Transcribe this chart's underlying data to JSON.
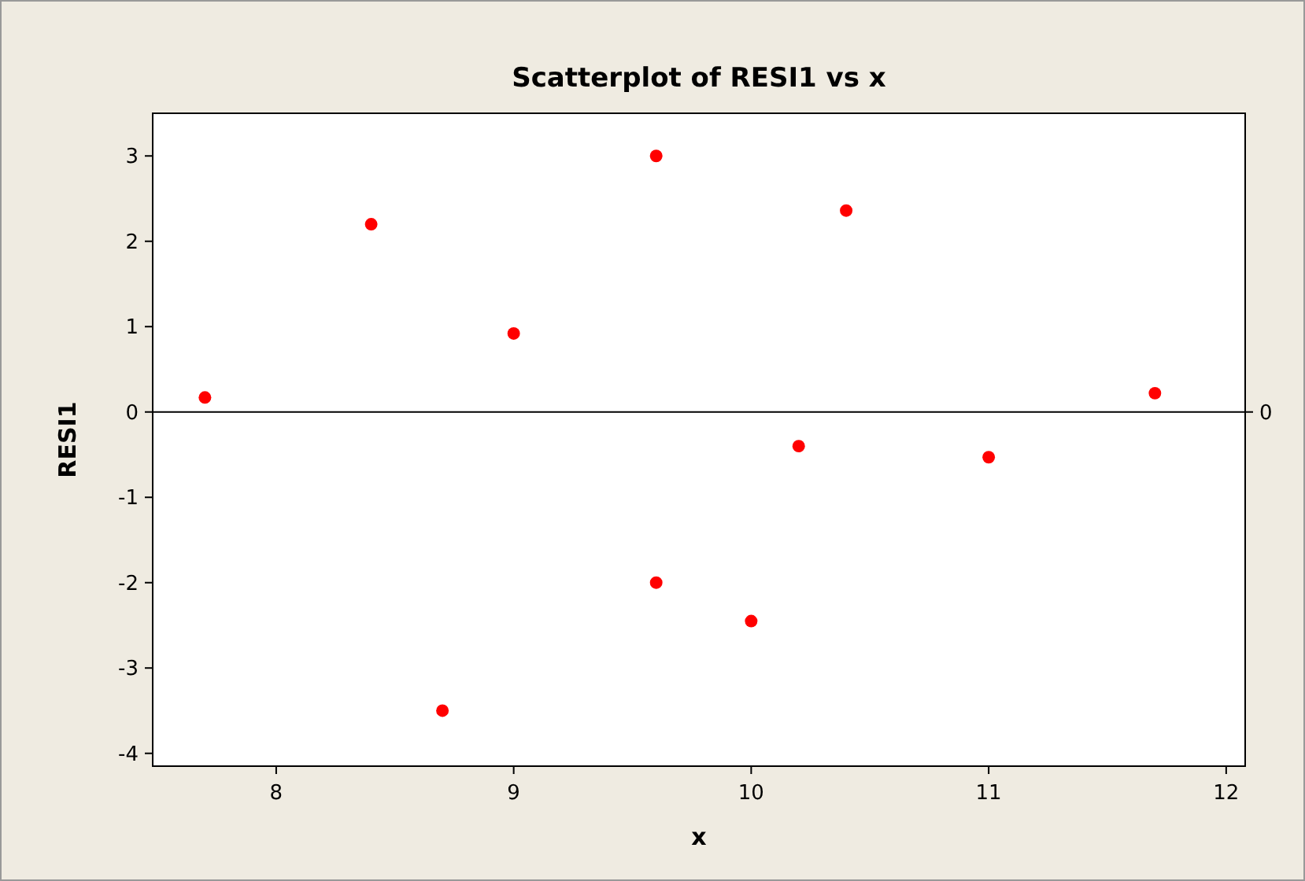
{
  "chart_data": {
    "type": "scatter",
    "title": "Scatterplot of RESI1 vs x",
    "xlabel": "x",
    "ylabel": "RESI1",
    "x": [
      7.7,
      8.4,
      8.7,
      9.0,
      9.6,
      9.6,
      10.0,
      10.2,
      10.4,
      11.0,
      11.7
    ],
    "series": [
      {
        "color": "#ff0000",
        "values": [
          0.17,
          2.2,
          -3.5,
          0.92,
          3.0,
          -2.0,
          -2.45,
          -0.4,
          2.36,
          -0.53,
          0.22
        ]
      }
    ],
    "xlim": [
      7.48,
      12.08
    ],
    "ylim": [
      -4.15,
      3.5
    ],
    "xticks": [
      8,
      9,
      10,
      11,
      12
    ],
    "yticks": [
      -4,
      -3,
      -2,
      -1,
      0,
      1,
      2,
      3
    ],
    "ref_lines": [
      {
        "axis": "y",
        "value": 0,
        "label": "0",
        "color": "#000000"
      }
    ],
    "marker": "circle"
  }
}
